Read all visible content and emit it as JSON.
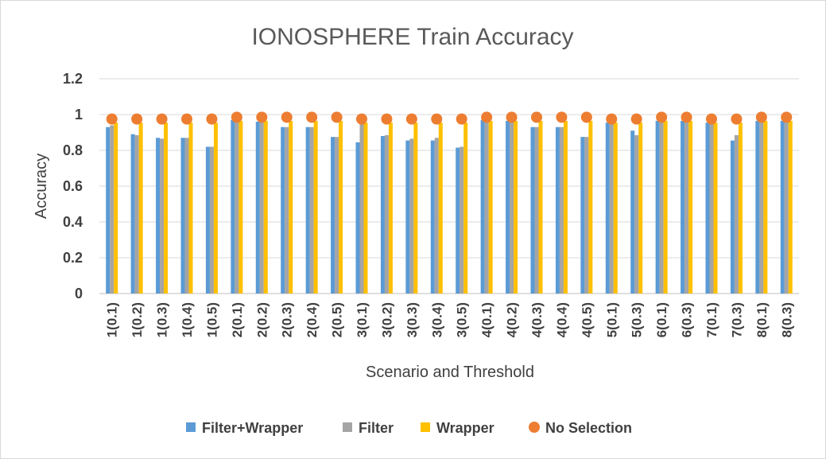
{
  "chart_data": {
    "type": "bar",
    "title": "IONOSPHERE Train Accuracy",
    "xlabel": "Scenario and Threshold",
    "ylabel": "Accuracy",
    "ylim": [
      0,
      1.2
    ],
    "yticks": [
      "0",
      "0.2",
      "0.4",
      "0.6",
      "0.8",
      "1",
      "1.2"
    ],
    "grid": true,
    "legend_position": "bottom",
    "categories": [
      "1(0.1)",
      "1(0.2)",
      "1(0.3)",
      "1(0.4)",
      "1(0.5)",
      "2(0.1)",
      "2(0.2)",
      "2(0.3)",
      "2(0.4)",
      "2(0.5)",
      "3(0.1)",
      "3(0.2)",
      "3(0.3)",
      "3(0.4)",
      "3(0.5)",
      "4(0.1)",
      "4(0.2)",
      "4(0.3)",
      "4(0.4)",
      "4(0.5)",
      "5(0.1)",
      "5(0.3)",
      "6(0.1)",
      "6(0.3)",
      "7(0.1)",
      "7(0.3)",
      "8(0.1)",
      "8(0.3)"
    ],
    "series": [
      {
        "name": "Filter+Wrapper",
        "kind": "bar",
        "color": "#5b9bd5",
        "values": [
          0.93,
          0.89,
          0.87,
          0.87,
          0.82,
          0.97,
          0.96,
          0.93,
          0.93,
          0.875,
          0.845,
          0.88,
          0.855,
          0.855,
          0.815,
          0.97,
          0.965,
          0.93,
          0.93,
          0.875,
          0.955,
          0.91,
          0.965,
          0.965,
          0.955,
          0.855,
          0.965,
          0.965
        ]
      },
      {
        "name": "Filter",
        "kind": "bar",
        "color": "#a5a5a5",
        "values": [
          0.94,
          0.885,
          0.865,
          0.87,
          0.82,
          0.97,
          0.96,
          0.93,
          0.93,
          0.875,
          0.95,
          0.885,
          0.865,
          0.87,
          0.82,
          0.97,
          0.965,
          0.93,
          0.93,
          0.875,
          0.95,
          0.885,
          0.965,
          0.965,
          0.95,
          0.885,
          0.965,
          0.965
        ]
      },
      {
        "name": "Wrapper",
        "kind": "bar",
        "color": "#ffc000",
        "values": [
          0.955,
          0.955,
          0.955,
          0.955,
          0.955,
          0.965,
          0.965,
          0.965,
          0.965,
          0.965,
          0.955,
          0.955,
          0.955,
          0.955,
          0.955,
          0.965,
          0.965,
          0.965,
          0.965,
          0.965,
          0.955,
          0.955,
          0.965,
          0.965,
          0.955,
          0.955,
          0.965,
          0.965
        ]
      },
      {
        "name": "No Selection",
        "kind": "marker",
        "color": "#ed7d31",
        "values": [
          0.975,
          0.975,
          0.975,
          0.975,
          0.975,
          0.985,
          0.985,
          0.985,
          0.985,
          0.985,
          0.975,
          0.975,
          0.975,
          0.975,
          0.975,
          0.985,
          0.985,
          0.985,
          0.985,
          0.985,
          0.975,
          0.975,
          0.985,
          0.985,
          0.975,
          0.975,
          0.985,
          0.985
        ]
      }
    ]
  }
}
